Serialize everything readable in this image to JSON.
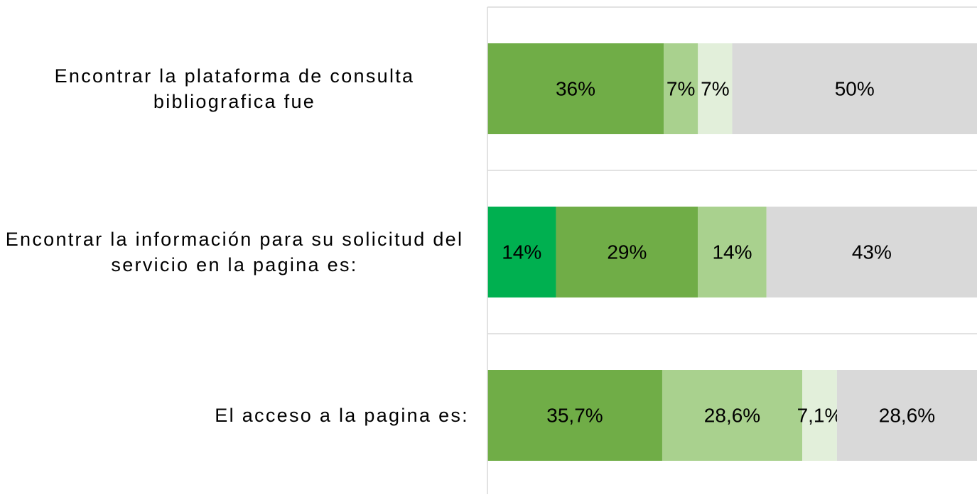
{
  "chart_data": {
    "type": "stacked-barh",
    "categories": [
      "Encontrar la plataforma de consulta bibliografica fue",
      "Encontrar la información para su solicitud del servicio en la pagina es:",
      "El acceso a la pagina es:"
    ],
    "xlim": [
      0,
      100
    ],
    "series": [
      {
        "color": "#00b050",
        "values": [
          null,
          14,
          null
        ],
        "value_labels": [
          null,
          "14%",
          null
        ]
      },
      {
        "color": "#70ad47",
        "values": [
          36,
          29,
          35.7
        ],
        "value_labels": [
          "36%",
          "29%",
          "35,7%"
        ]
      },
      {
        "color": "#a9d18e",
        "values": [
          7,
          14,
          28.6
        ],
        "value_labels": [
          "7%",
          "14%",
          "28,6%"
        ]
      },
      {
        "color": "#e2efda",
        "values": [
          7,
          null,
          7.1
        ],
        "value_labels": [
          "7%",
          null,
          "7,1%"
        ]
      },
      {
        "color": "#d9d9d9",
        "values": [
          50,
          43,
          28.6
        ],
        "value_labels": [
          "50%",
          "43%",
          "28,6%"
        ]
      }
    ]
  }
}
